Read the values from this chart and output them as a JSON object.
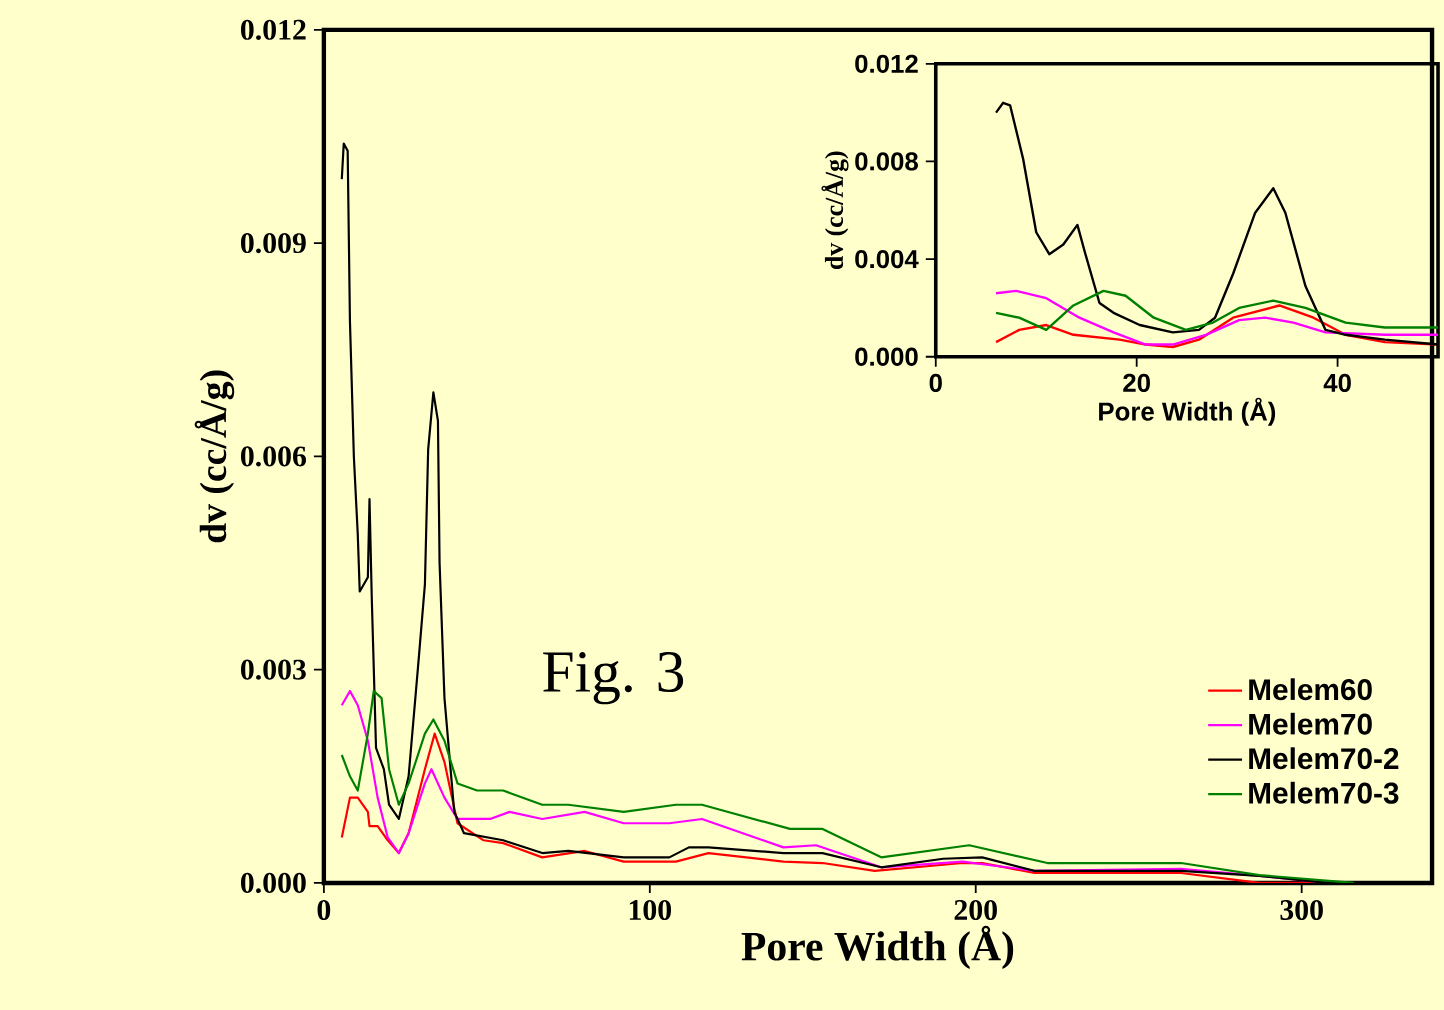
{
  "chart_data": [
    {
      "type": "line",
      "xlabel": "Pore Width (Å)",
      "ylabel": "dv (cc/Å/g)",
      "xlim": [
        0,
        340
      ],
      "ylim": [
        0,
        0.012
      ],
      "xticks": [
        0,
        100,
        200,
        300
      ],
      "yticks": [
        {
          "value": 0,
          "label": "0.000"
        },
        {
          "value": 0.003,
          "label": "0.003"
        },
        {
          "value": 0.006,
          "label": "0.006"
        },
        {
          "value": 0.009,
          "label": "0.009"
        },
        {
          "value": 0.012,
          "label": "0.012"
        }
      ],
      "legend": "bottom right",
      "annotations": [
        "Fig. 3"
      ],
      "series": [
        {
          "name": "Melem60",
          "color": "#ff0000",
          "x": [
            5.5,
            8,
            10.4,
            13.5,
            14,
            16.5,
            19.6,
            23,
            26,
            31,
            34,
            37,
            41,
            49,
            55,
            67,
            80,
            92,
            108,
            118,
            141,
            153,
            169,
            196,
            202,
            218,
            263,
            287,
            308
          ],
          "values": [
            0.00064,
            0.0012,
            0.0012,
            0.001,
            0.0008,
            0.0008,
            0.0006,
            0.00042,
            0.0007,
            0.0016,
            0.0021,
            0.0017,
            0.00084,
            0.0006,
            0.00056,
            0.00036,
            0.00045,
            0.0003,
            0.0003,
            0.00042,
            0.0003,
            0.00028,
            0.00017,
            0.00028,
            0.00028,
            0.00014,
            0.00014,
            0,
            0
          ]
        },
        {
          "name": "Melem70",
          "color": "#ff00ff",
          "x": [
            5.5,
            8,
            10.4,
            13.5,
            16.5,
            19.6,
            23,
            26,
            31,
            33,
            37,
            41,
            51,
            57,
            67,
            80,
            92,
            106,
            116,
            141,
            151,
            171,
            196,
            218,
            263,
            287,
            308
          ],
          "values": [
            0.0025,
            0.0027,
            0.0025,
            0.002,
            0.0012,
            0.00064,
            0.00042,
            0.0007,
            0.0014,
            0.0016,
            0.0012,
            0.0009,
            0.0009,
            0.001,
            0.0009,
            0.001,
            0.00084,
            0.00084,
            0.0009,
            0.0005,
            0.00053,
            0.00022,
            0.0003,
            0.00017,
            0.0002,
            0.0001,
            0
          ]
        },
        {
          "name": "Melem70-2",
          "color": "#000000",
          "x": [
            5.5,
            6.1,
            7.3,
            8,
            9.2,
            10.4,
            11,
            13.5,
            14,
            14.7,
            16,
            18.4,
            20,
            23,
            26,
            29,
            31,
            32,
            33.6,
            35,
            35.5,
            37,
            40,
            43,
            55,
            67,
            75,
            92,
            106,
            112,
            118,
            141,
            153,
            171,
            190,
            202,
            218,
            263,
            287,
            308,
            316
          ],
          "values": [
            0.0099,
            0.0104,
            0.0103,
            0.0079,
            0.006,
            0.0049,
            0.0041,
            0.0043,
            0.0054,
            0.004,
            0.0019,
            0.0016,
            0.0011,
            0.0009,
            0.0015,
            0.0031,
            0.0042,
            0.0061,
            0.0069,
            0.0065,
            0.0045,
            0.0026,
            0.001,
            0.0007,
            0.0006,
            0.00042,
            0.00045,
            0.00036,
            0.00036,
            0.0005,
            0.0005,
            0.00042,
            0.00042,
            0.00022,
            0.00034,
            0.00036,
            0.00017,
            0.00017,
            0.0001,
            0,
            0
          ]
        },
        {
          "name": "Melem70-3",
          "color": "#008000",
          "x": [
            5.5,
            8,
            10.4,
            13.5,
            15.3,
            17.7,
            20,
            23,
            26,
            31,
            33.6,
            37,
            41,
            47,
            55,
            67,
            75,
            92,
            108,
            116,
            143,
            153,
            171,
            198,
            222,
            263,
            287,
            316
          ],
          "values": [
            0.0018,
            0.0015,
            0.0013,
            0.0021,
            0.0027,
            0.0026,
            0.0016,
            0.0011,
            0.0014,
            0.0021,
            0.0023,
            0.002,
            0.0014,
            0.0013,
            0.0013,
            0.0011,
            0.0011,
            0.001,
            0.0011,
            0.0011,
            0.00076,
            0.00076,
            0.00036,
            0.00053,
            0.00028,
            0.00028,
            0.00011,
            0
          ]
        }
      ]
    },
    {
      "type": "line",
      "xlabel": "Pore Width (Å)",
      "ylabel": "dv (cc/Å/g)",
      "xlim": [
        0,
        50
      ],
      "ylim": [
        0,
        0.012
      ],
      "xticks": [
        0,
        20,
        40
      ],
      "yticks": [
        {
          "value": 0,
          "label": "0.000"
        },
        {
          "value": 0.004,
          "label": "0.004"
        },
        {
          "value": 0.008,
          "label": "0.008"
        },
        {
          "value": 0.012,
          "label": "0.012"
        }
      ],
      "series": [
        {
          "color": "#ff0000",
          "x": [
            6,
            8.3,
            11,
            13.7,
            18.3,
            20.9,
            23.6,
            26.2,
            29.6,
            34.2,
            37.6,
            40.8,
            44.7,
            50
          ],
          "values": [
            0.0006,
            0.0011,
            0.0013,
            0.0009,
            0.0007,
            0.0005,
            0.0004,
            0.0007,
            0.0016,
            0.0021,
            0.0016,
            0.0009,
            0.0006,
            0.0005
          ]
        },
        {
          "color": "#ff00ff",
          "x": [
            6,
            8,
            11,
            14.3,
            17.7,
            20.9,
            23.6,
            26.9,
            30.2,
            32.8,
            35.6,
            38.8,
            44.7,
            50
          ],
          "values": [
            0.0026,
            0.0027,
            0.0024,
            0.0016,
            0.001,
            0.0005,
            0.0005,
            0.0009,
            0.0015,
            0.0016,
            0.0014,
            0.001,
            0.0009,
            0.0009
          ]
        },
        {
          "color": "#000000",
          "x": [
            6,
            6.7,
            7.4,
            8.7,
            10,
            11.3,
            12.7,
            14.1,
            14.9,
            16.3,
            17.7,
            20.3,
            23.6,
            26.2,
            27.8,
            29.6,
            31.8,
            33.6,
            34.8,
            36.8,
            38.8,
            40.8,
            44.7,
            50
          ],
          "values": [
            0.01,
            0.0104,
            0.0103,
            0.0081,
            0.0051,
            0.0042,
            0.0046,
            0.0054,
            0.0042,
            0.0022,
            0.0018,
            0.0013,
            0.001,
            0.0011,
            0.0016,
            0.0034,
            0.0059,
            0.0069,
            0.0059,
            0.0029,
            0.0011,
            0.0009,
            0.0007,
            0.0005
          ]
        },
        {
          "color": "#008000",
          "x": [
            6,
            8.3,
            11,
            13.7,
            16.7,
            18.9,
            21.7,
            24.9,
            27.6,
            30.2,
            33.6,
            36.8,
            40.8,
            44.7,
            50
          ],
          "values": [
            0.0018,
            0.0016,
            0.0011,
            0.0021,
            0.0027,
            0.0025,
            0.0016,
            0.0011,
            0.0014,
            0.002,
            0.0023,
            0.002,
            0.0014,
            0.0012,
            0.0012
          ]
        }
      ]
    }
  ]
}
